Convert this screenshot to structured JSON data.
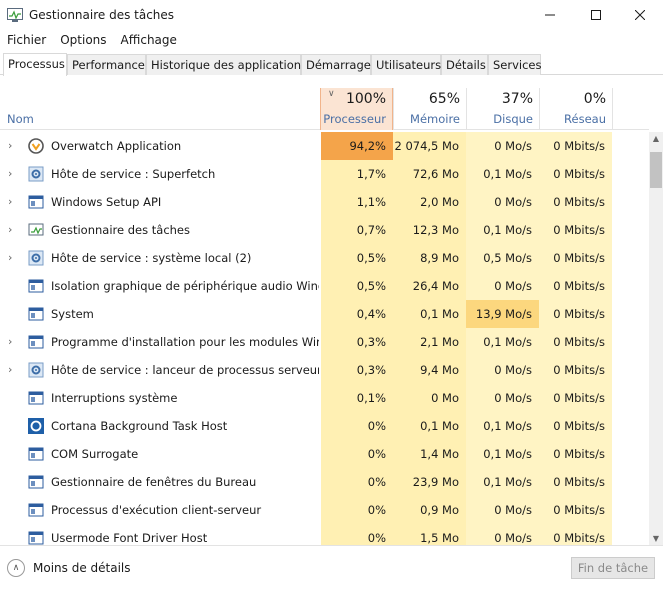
{
  "window": {
    "title": "Gestionnaire des tâches",
    "controls": [
      "minimize",
      "maximize",
      "close"
    ]
  },
  "menu": [
    "Fichier",
    "Options",
    "Affichage"
  ],
  "tabs": [
    "Processus",
    "Performance",
    "Historique des applications",
    "Démarrage",
    "Utilisateurs",
    "Détails",
    "Services"
  ],
  "active_tab": "Processus",
  "columns": {
    "name": "Nom",
    "cpu": {
      "pct": "100%",
      "label": "Processeur"
    },
    "memory": {
      "pct": "65%",
      "label": "Mémoire"
    },
    "disk": {
      "pct": "37%",
      "label": "Disque"
    },
    "network": {
      "pct": "0%",
      "label": "Réseau"
    }
  },
  "sort_column": "cpu",
  "processes": [
    {
      "name": "Overwatch Application",
      "expandable": true,
      "icon": "overwatch-icon",
      "cpu": "94,2%",
      "mem": "2 074,5 Mo",
      "disk": "0 Mo/s",
      "net": "0 Mbits/s"
    },
    {
      "name": "Hôte de service : Superfetch",
      "expandable": true,
      "icon": "gear-icon",
      "cpu": "1,7%",
      "mem": "72,6 Mo",
      "disk": "0,1 Mo/s",
      "net": "0 Mbits/s"
    },
    {
      "name": "Windows Setup API",
      "expandable": true,
      "icon": "window-icon",
      "cpu": "1,1%",
      "mem": "2,0 Mo",
      "disk": "0 Mo/s",
      "net": "0 Mbits/s"
    },
    {
      "name": "Gestionnaire des tâches",
      "expandable": true,
      "icon": "task-manager-icon",
      "cpu": "0,7%",
      "mem": "12,3 Mo",
      "disk": "0,1 Mo/s",
      "net": "0 Mbits/s"
    },
    {
      "name": "Hôte de service : système local (2)",
      "expandable": true,
      "icon": "gear-icon",
      "cpu": "0,5%",
      "mem": "8,9 Mo",
      "disk": "0,5 Mo/s",
      "net": "0 Mbits/s"
    },
    {
      "name": "Isolation graphique de périphérique audio Wind...",
      "expandable": false,
      "icon": "window-icon",
      "cpu": "0,5%",
      "mem": "26,4 Mo",
      "disk": "0 Mo/s",
      "net": "0 Mbits/s"
    },
    {
      "name": "System",
      "expandable": false,
      "icon": "window-icon",
      "cpu": "0,4%",
      "mem": "0,1 Mo",
      "disk": "13,9 Mo/s",
      "net": "0 Mbits/s"
    },
    {
      "name": "Programme d'installation pour les modules Win...",
      "expandable": true,
      "icon": "window-icon",
      "cpu": "0,3%",
      "mem": "2,1 Mo",
      "disk": "0,1 Mo/s",
      "net": "0 Mbits/s"
    },
    {
      "name": "Hôte de service : lanceur de processus serveur D...",
      "expandable": true,
      "icon": "gear-icon",
      "cpu": "0,3%",
      "mem": "9,4 Mo",
      "disk": "0 Mo/s",
      "net": "0 Mbits/s"
    },
    {
      "name": "Interruptions système",
      "expandable": false,
      "icon": "window-icon",
      "cpu": "0,1%",
      "mem": "0 Mo",
      "disk": "0 Mo/s",
      "net": "0 Mbits/s"
    },
    {
      "name": "Cortana Background Task Host",
      "expandable": false,
      "icon": "cortana-icon",
      "cpu": "0%",
      "mem": "0,1 Mo",
      "disk": "0,1 Mo/s",
      "net": "0 Mbits/s"
    },
    {
      "name": "COM Surrogate",
      "expandable": false,
      "icon": "window-icon",
      "cpu": "0%",
      "mem": "1,4 Mo",
      "disk": "0,1 Mo/s",
      "net": "0 Mbits/s"
    },
    {
      "name": "Gestionnaire de fenêtres du Bureau",
      "expandable": false,
      "icon": "window-icon",
      "cpu": "0%",
      "mem": "23,9 Mo",
      "disk": "0,1 Mo/s",
      "net": "0 Mbits/s"
    },
    {
      "name": "Processus d'exécution client-serveur",
      "expandable": false,
      "icon": "window-icon",
      "cpu": "0%",
      "mem": "0,9 Mo",
      "disk": "0 Mo/s",
      "net": "0 Mbits/s"
    },
    {
      "name": "Usermode Font Driver Host",
      "expandable": false,
      "icon": "window-icon",
      "cpu": "0%",
      "mem": "1,5 Mo",
      "disk": "0 Mo/s",
      "net": "0 Mbits/s"
    }
  ],
  "footer": {
    "less_details": "Moins de détails",
    "end_task": "Fin de tâche"
  },
  "colors": {
    "cpu_high": "#f4a44a",
    "disk_high": "#fcd77e",
    "cell_light": "#fff4c4",
    "cell_light2": "#fff0b3",
    "sorted_header": "#fbe4d3"
  }
}
